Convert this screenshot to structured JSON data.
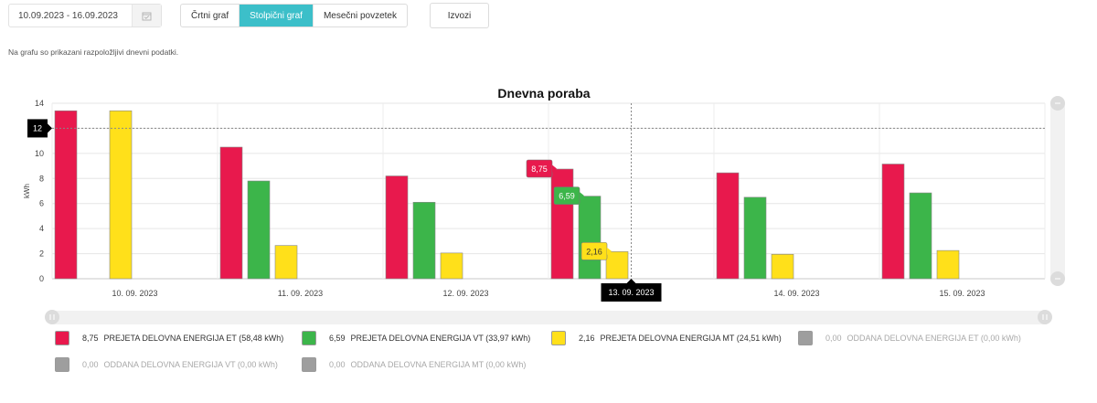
{
  "toolbar": {
    "date_range": "10.09.2023 - 16.09.2023",
    "view_buttons": [
      {
        "label": "Črtni graf",
        "active": false
      },
      {
        "label": "Stolpični graf",
        "active": true
      },
      {
        "label": "Mesečni povzetek",
        "active": false
      }
    ],
    "export_label": "Izvozi"
  },
  "info_text": "Na grafu so prikazani razpoložljivi dnevni podatki.",
  "chart_data": {
    "type": "bar",
    "title": "Dnevna poraba",
    "xlabel": "",
    "ylabel": "kWh",
    "ylim": [
      0,
      14
    ],
    "yticks": [
      0,
      2,
      4,
      6,
      8,
      10,
      12,
      14
    ],
    "grid": true,
    "legend_position": "bottom",
    "categories": [
      "10. 09. 2023",
      "11. 09. 2023",
      "12. 09. 2023",
      "13. 09. 2023",
      "14. 09. 2023",
      "15. 09. 2023"
    ],
    "series": [
      {
        "name": "PREJETA DELOVNA ENERGIJA ET",
        "color": "#e8194d",
        "values": [
          13.4,
          10.5,
          8.2,
          8.75,
          8.45,
          9.15
        ]
      },
      {
        "name": "PREJETA DELOVNA ENERGIJA VT",
        "color": "#3cb54a",
        "values": [
          0,
          7.8,
          6.1,
          6.59,
          6.5,
          6.85
        ]
      },
      {
        "name": "PREJETA DELOVNA ENERGIJA MT",
        "color": "#ffe01a",
        "values": [
          13.4,
          2.65,
          2.05,
          2.16,
          1.95,
          2.25
        ]
      }
    ],
    "crosshair": {
      "y_value": "12",
      "x_category": "13. 09. 2023",
      "category_index": 3,
      "y": 12
    },
    "tooltips": [
      {
        "series_index": 0,
        "text": "8,75"
      },
      {
        "series_index": 1,
        "text": "6,59"
      },
      {
        "series_index": 2,
        "text": "2,16"
      }
    ]
  },
  "legend": [
    {
      "value": "8,75",
      "label": "PREJETA DELOVNA ENERGIJA ET (58,48 kWh)",
      "color": "#e8194d",
      "muted": false
    },
    {
      "value": "6,59",
      "label": "PREJETA DELOVNA ENERGIJA VT (33,97 kWh)",
      "color": "#3cb54a",
      "muted": false
    },
    {
      "value": "2,16",
      "label": "PREJETA DELOVNA ENERGIJA MT (24,51 kWh)",
      "color": "#ffe01a",
      "muted": false
    },
    {
      "value": "0,00",
      "label": "ODDANA DELOVNA ENERGIJA ET (0,00 kWh)",
      "color": "#9e9e9e",
      "muted": true
    },
    {
      "value": "0,00",
      "label": "ODDANA DELOVNA ENERGIJA VT (0,00 kWh)",
      "color": "#9e9e9e",
      "muted": true
    },
    {
      "value": "0,00",
      "label": "ODDANA DELOVNA ENERGIJA MT (0,00 kWh)",
      "color": "#9e9e9e",
      "muted": true
    }
  ]
}
